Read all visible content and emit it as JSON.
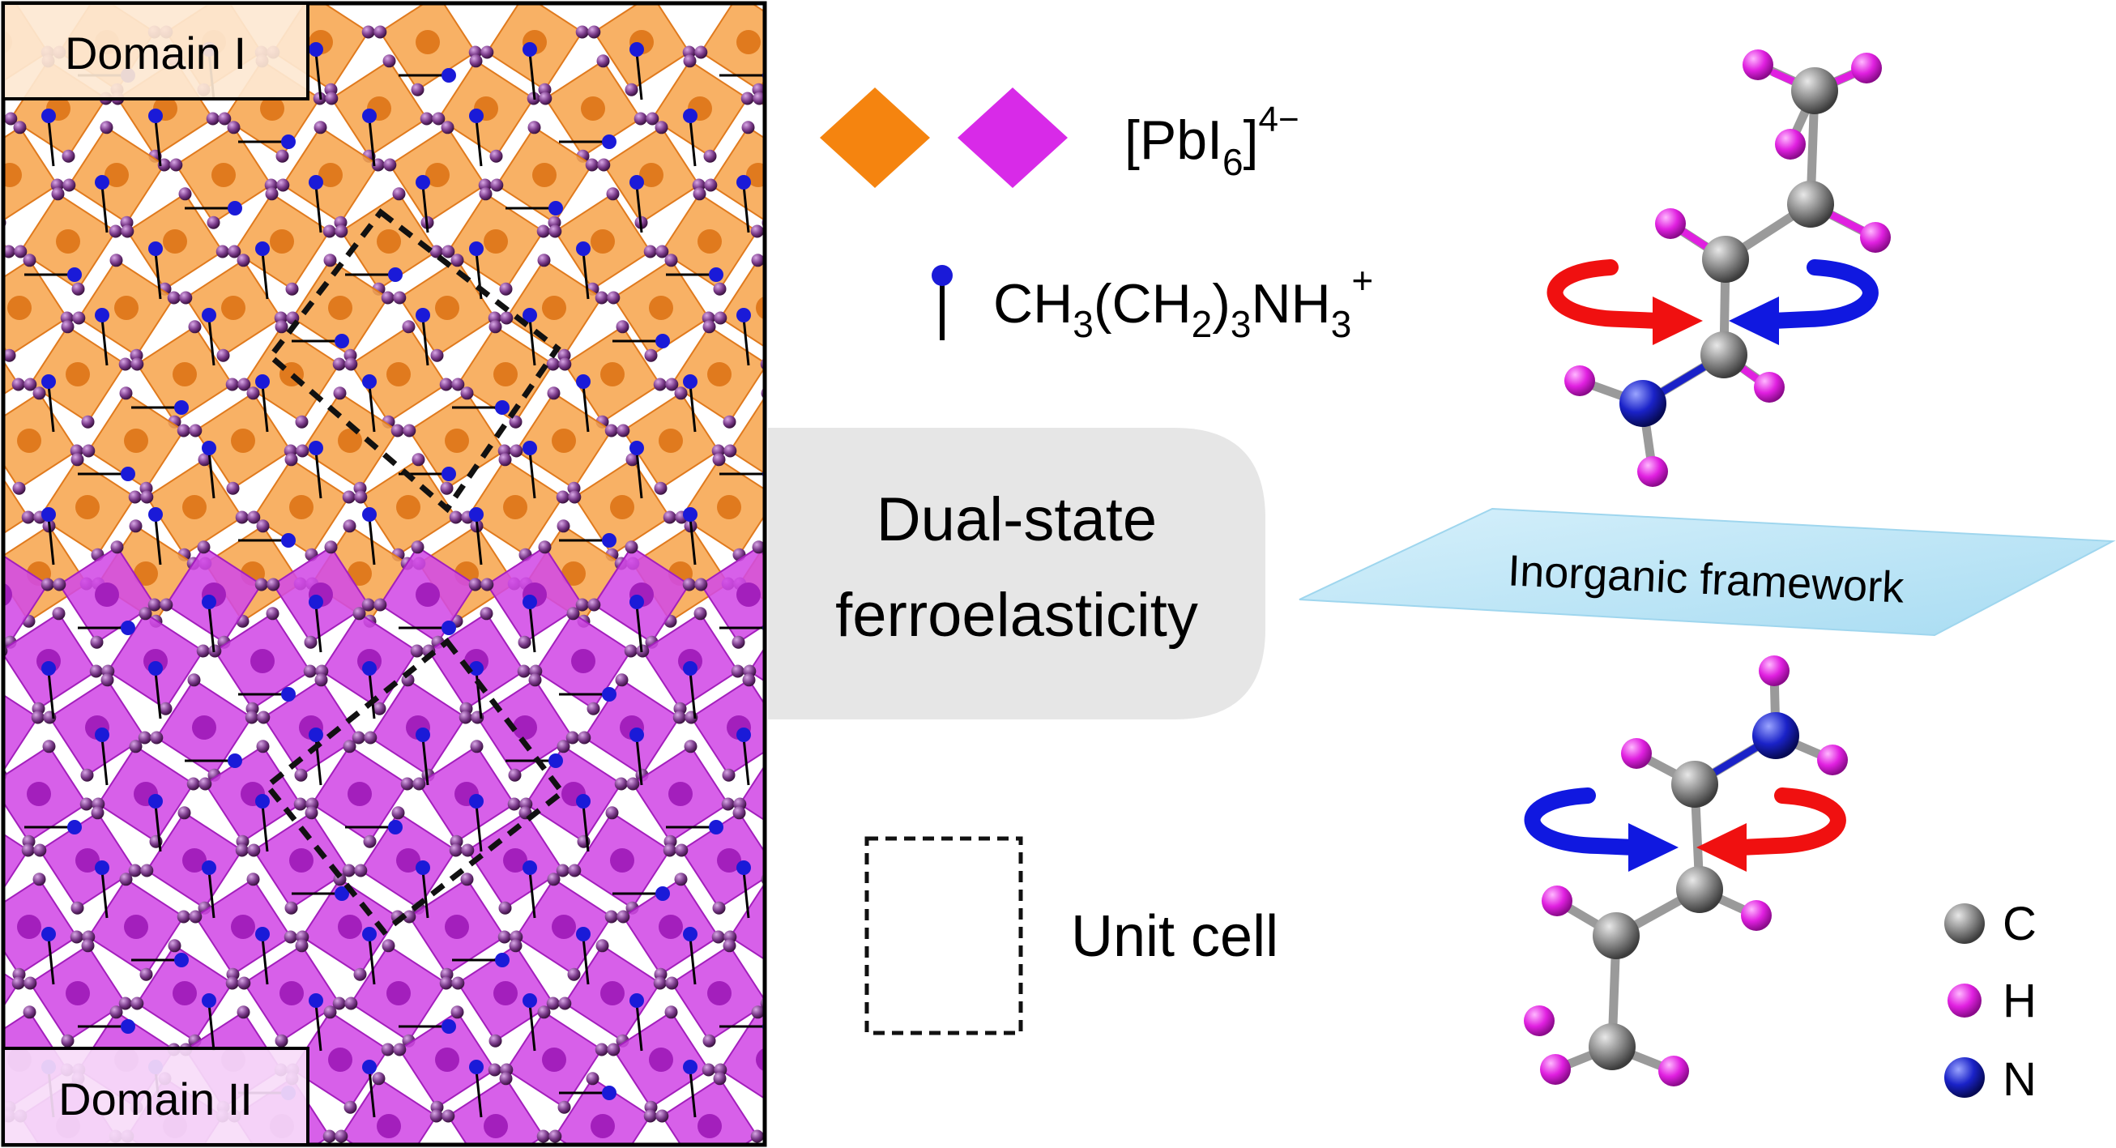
{
  "domains": {
    "top_label": "Domain I",
    "bottom_label": "Domain II"
  },
  "legend": {
    "octahedra_formula_prefix": "[PbI",
    "octahedra_formula_sub": "6",
    "octahedra_formula_suffix": "]",
    "octahedra_formula_charge": "4−",
    "cation_parts": [
      "CH",
      "3",
      "(CH",
      "2",
      ")",
      "3",
      "NH",
      "3",
      "+"
    ],
    "unit_cell_label": "Unit cell"
  },
  "center_callout": {
    "line1": "Dual-state",
    "line2": "ferroelasticity"
  },
  "framework_label": "Inorganic framework",
  "atoms": [
    {
      "symbol": "C",
      "color": "#7a7a7a"
    },
    {
      "symbol": "H",
      "color": "#e020e0"
    },
    {
      "symbol": "N",
      "color": "#1a22c8"
    }
  ],
  "colors": {
    "domain_top": "#f7a650",
    "domain_top_dark": "#e07a1e",
    "domain_bottom": "#d24ae6",
    "domain_bottom_dark": "#a31fbc",
    "octahedron_orange": "#f5840f",
    "octahedron_magenta": "#d82ae8",
    "cation_blue": "#1a1ad8",
    "arrow_red": "#f01010",
    "arrow_blue": "#1018e0",
    "callout_bg": "#e6e6e6",
    "framework_plane": "#bfe6f7"
  }
}
